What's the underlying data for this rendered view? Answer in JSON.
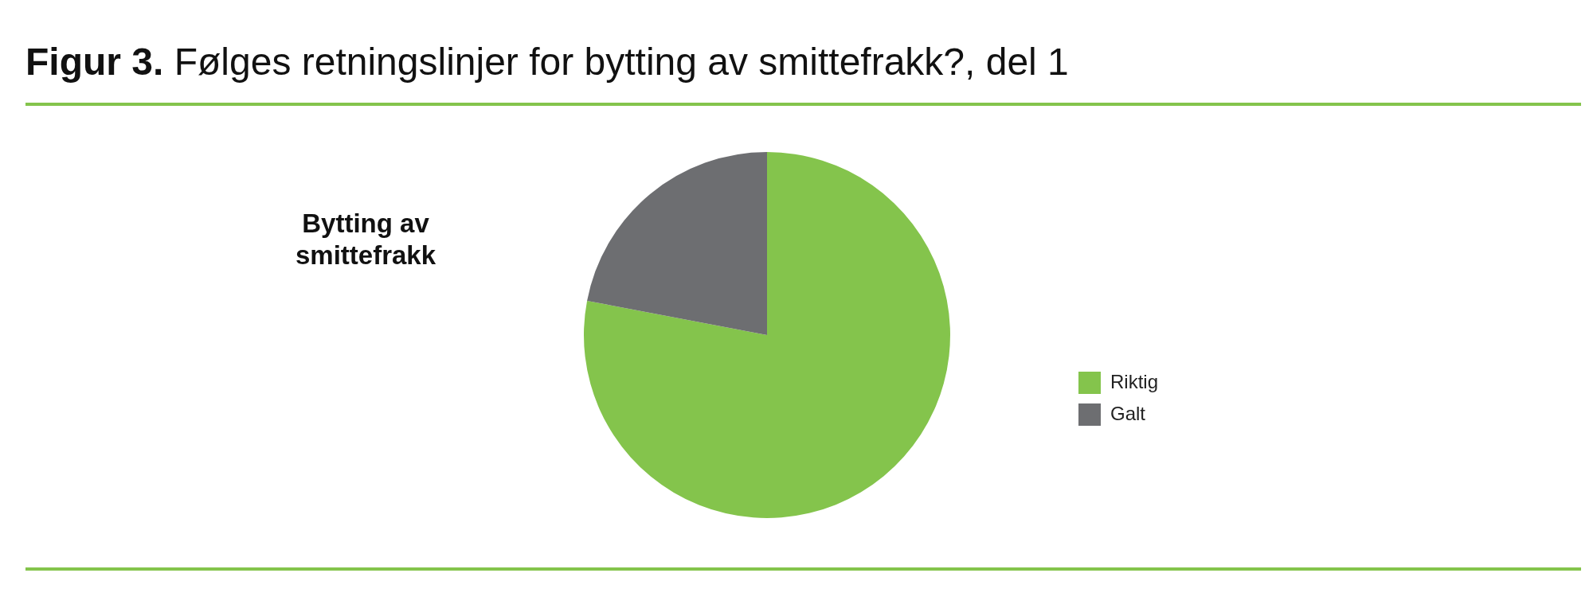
{
  "chart_data": {
    "type": "pie",
    "title": "Figur 3. Følges retningslinjer for bytting av smittefrakk?, del 1",
    "subtitle": "Bytting av smittefrakk",
    "categories": [
      "Riktig",
      "Galt"
    ],
    "values": [
      78,
      22
    ],
    "colors": [
      "#84c44c",
      "#6d6e71"
    ],
    "legend": "right"
  }
}
